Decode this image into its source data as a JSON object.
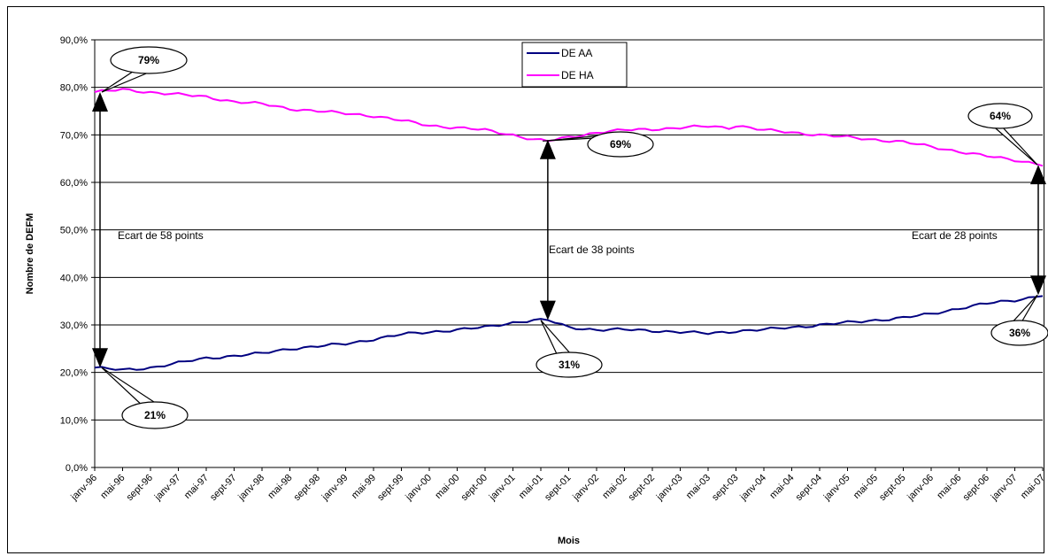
{
  "chart_data": {
    "type": "line",
    "xlabel": "Mois",
    "ylabel": "Nombre de DEFM",
    "ylim": [
      0,
      90
    ],
    "yticks": [
      "0,0%",
      "10,0%",
      "20,0%",
      "30,0%",
      "40,0%",
      "50,0%",
      "60,0%",
      "70,0%",
      "80,0%",
      "90,0%"
    ],
    "x_labels": [
      "janv-96",
      "mai-96",
      "sept-96",
      "janv-97",
      "mai-97",
      "sept-97",
      "janv-98",
      "mai-98",
      "sept-98",
      "janv-99",
      "mai-99",
      "sept-99",
      "janv-00",
      "mai-00",
      "sept-00",
      "janv-01",
      "mai-01",
      "sept-01",
      "janv-02",
      "mai-02",
      "sept-02",
      "janv-03",
      "mai-03",
      "sept-03",
      "janv-04",
      "mai-04",
      "sept-04",
      "janv-05",
      "mai-05",
      "sept-05",
      "janv-06",
      "mai-06",
      "sept-06",
      "janv-07",
      "mai-07"
    ],
    "grid": true,
    "legend_position": "top-center",
    "series": [
      {
        "name": "DE AA",
        "color": "#000080",
        "anchors": [
          [
            0,
            21
          ],
          [
            4,
            20.5
          ],
          [
            8,
            21
          ],
          [
            12,
            22
          ],
          [
            16,
            23
          ],
          [
            20,
            23.5
          ],
          [
            24,
            24
          ],
          [
            28,
            25
          ],
          [
            32,
            25.5
          ],
          [
            36,
            26
          ],
          [
            40,
            27
          ],
          [
            44,
            28
          ],
          [
            48,
            28.5
          ],
          [
            52,
            29
          ],
          [
            56,
            29.5
          ],
          [
            60,
            30.5
          ],
          [
            63,
            31
          ],
          [
            65,
            31
          ],
          [
            68,
            29.5
          ],
          [
            72,
            29
          ],
          [
            76,
            29
          ],
          [
            80,
            28.8
          ],
          [
            84,
            28.5
          ],
          [
            88,
            28.2
          ],
          [
            92,
            28.7
          ],
          [
            96,
            29
          ],
          [
            100,
            29.5
          ],
          [
            104,
            30
          ],
          [
            108,
            30.5
          ],
          [
            112,
            31
          ],
          [
            116,
            31.5
          ],
          [
            120,
            32.3
          ],
          [
            124,
            33.5
          ],
          [
            128,
            34.5
          ],
          [
            132,
            35.2
          ],
          [
            135,
            36
          ],
          [
            136,
            36.3
          ]
        ]
      },
      {
        "name": "DE HA",
        "color": "#FF00FF",
        "anchors": [
          [
            0,
            79
          ],
          [
            4,
            79.5
          ],
          [
            8,
            79
          ],
          [
            12,
            78.5
          ],
          [
            16,
            78
          ],
          [
            20,
            77
          ],
          [
            24,
            76.5
          ],
          [
            28,
            75.5
          ],
          [
            32,
            75
          ],
          [
            36,
            74.5
          ],
          [
            40,
            74
          ],
          [
            44,
            73
          ],
          [
            48,
            72
          ],
          [
            52,
            71.5
          ],
          [
            56,
            71
          ],
          [
            60,
            70
          ],
          [
            63,
            69
          ],
          [
            65,
            68.7
          ],
          [
            68,
            69.5
          ],
          [
            72,
            70.5
          ],
          [
            76,
            71
          ],
          [
            80,
            71.2
          ],
          [
            84,
            71.5
          ],
          [
            88,
            71.8
          ],
          [
            91,
            71.5
          ],
          [
            92,
            72
          ],
          [
            96,
            71
          ],
          [
            100,
            70.5
          ],
          [
            104,
            70
          ],
          [
            108,
            69.5
          ],
          [
            112,
            69
          ],
          [
            116,
            68.5
          ],
          [
            120,
            67.5
          ],
          [
            124,
            66.5
          ],
          [
            128,
            65.5
          ],
          [
            132,
            64.7
          ],
          [
            135,
            64
          ],
          [
            136,
            63.7
          ]
        ]
      }
    ],
    "annotations": {
      "bubbles": [
        "79%",
        "21%",
        "69%",
        "31%",
        "64%",
        "36%"
      ],
      "gaps": [
        "Ecart de 58 points",
        "Ecart de 38 points",
        "Ecart de 28 points"
      ]
    }
  }
}
